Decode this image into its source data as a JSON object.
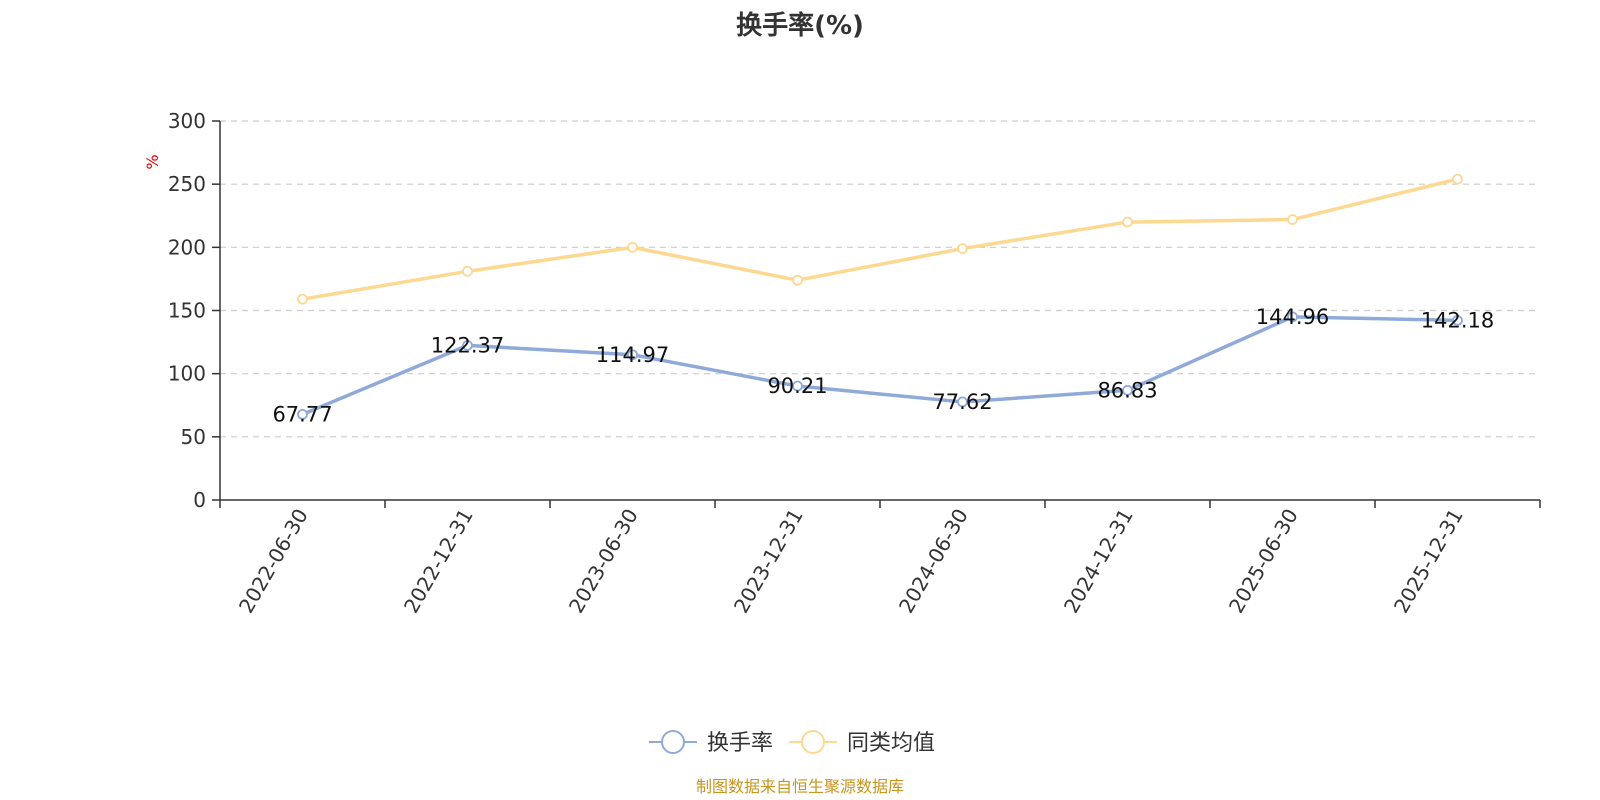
{
  "chart_data": {
    "type": "line",
    "title": "换手率(%)",
    "y_unit": "%",
    "ylim": [
      0,
      300
    ],
    "yticks": [
      0,
      50,
      100,
      150,
      200,
      250,
      300
    ],
    "grid": true,
    "legend_position": "bottom-center",
    "categories": [
      "2022-06-30",
      "2022-12-31",
      "2023-06-30",
      "2023-12-31",
      "2024-06-30",
      "2024-12-31",
      "2025-06-30",
      "2025-12-31"
    ],
    "series": [
      {
        "name": "换手率",
        "color": "#8faad9",
        "values": [
          67.77,
          122.37,
          114.97,
          90.21,
          77.62,
          86.83,
          144.96,
          142.18
        ],
        "data_labels": [
          "67.77",
          "122.37",
          "114.97",
          "90.21",
          "77.62",
          "86.83",
          "144.96",
          "142.18"
        ]
      },
      {
        "name": "同类均值",
        "color": "#fdd891",
        "values": [
          159,
          181,
          200,
          174,
          199,
          220,
          222,
          254
        ]
      }
    ],
    "source": "制图数据来自恒生聚源数据库"
  }
}
